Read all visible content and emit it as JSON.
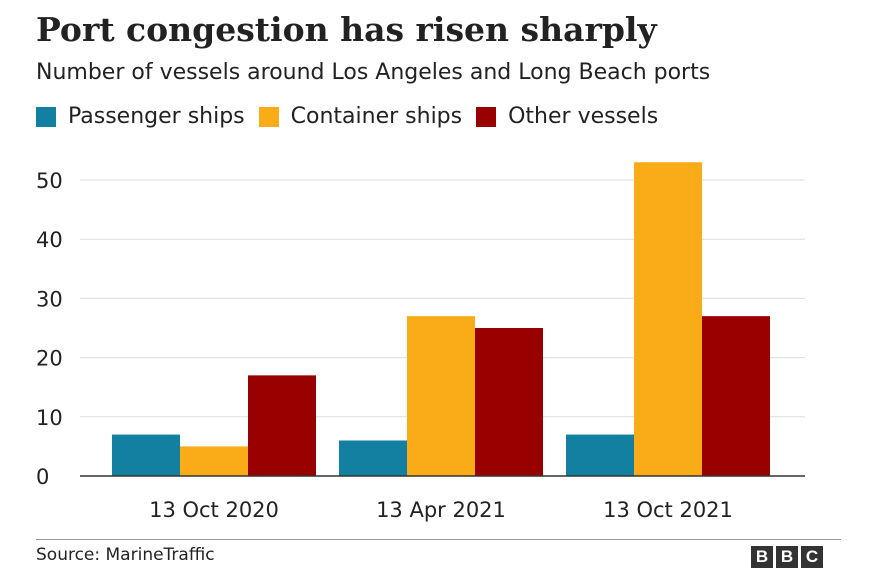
{
  "chart_data": {
    "type": "bar",
    "title": "Port congestion has risen sharply",
    "subtitle": "Number of vessels around Los Angeles and Long Beach ports",
    "categories": [
      "13 Oct 2020",
      "13 Apr 2021",
      "13 Oct 2021"
    ],
    "series": [
      {
        "name": "Passenger ships",
        "color": "#1380A1",
        "values": [
          7,
          6,
          7
        ]
      },
      {
        "name": "Container ships",
        "color": "#FAAB18",
        "values": [
          5,
          27,
          53
        ]
      },
      {
        "name": "Other vessels",
        "color": "#990000",
        "values": [
          17,
          25,
          27
        ]
      }
    ],
    "ylim": [
      0,
      55
    ],
    "yticks": [
      0,
      10,
      20,
      30,
      40,
      50
    ],
    "grid": true,
    "legend_position": "top-left"
  },
  "footer": {
    "source": "Source: MarineTraffic",
    "logo_letters": [
      "B",
      "B",
      "C"
    ]
  }
}
